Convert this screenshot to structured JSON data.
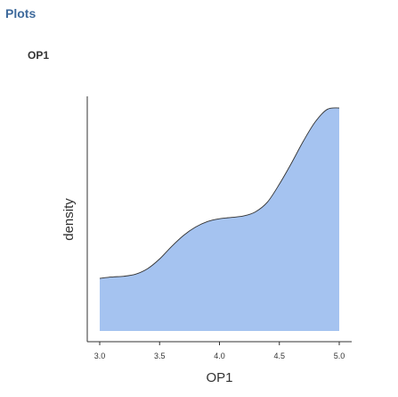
{
  "header": {
    "title": "Plots"
  },
  "plot": {
    "title": "OP1"
  },
  "chart_data": {
    "type": "area",
    "xlabel": "OP1",
    "ylabel": "density",
    "xlim": [
      3.0,
      5.0
    ],
    "x_ticks": [
      "3.0",
      "3.5",
      "4.0",
      "4.5",
      "5.0"
    ],
    "y_ticks_shown": false,
    "fill_color": "#a5c3f0",
    "line_color": "#333333",
    "series": [
      {
        "x": [
          3.0,
          3.1,
          3.2,
          3.3,
          3.4,
          3.5,
          3.6,
          3.7,
          3.8,
          3.9,
          4.0,
          4.1,
          4.2,
          4.3,
          4.4,
          4.5,
          4.6,
          4.7,
          4.8,
          4.9,
          5.0
        ],
        "y": [
          0.3,
          0.31,
          0.315,
          0.33,
          0.37,
          0.44,
          0.53,
          0.61,
          0.67,
          0.71,
          0.73,
          0.74,
          0.75,
          0.78,
          0.85,
          0.98,
          1.13,
          1.29,
          1.43,
          1.52,
          1.53
        ]
      }
    ]
  }
}
